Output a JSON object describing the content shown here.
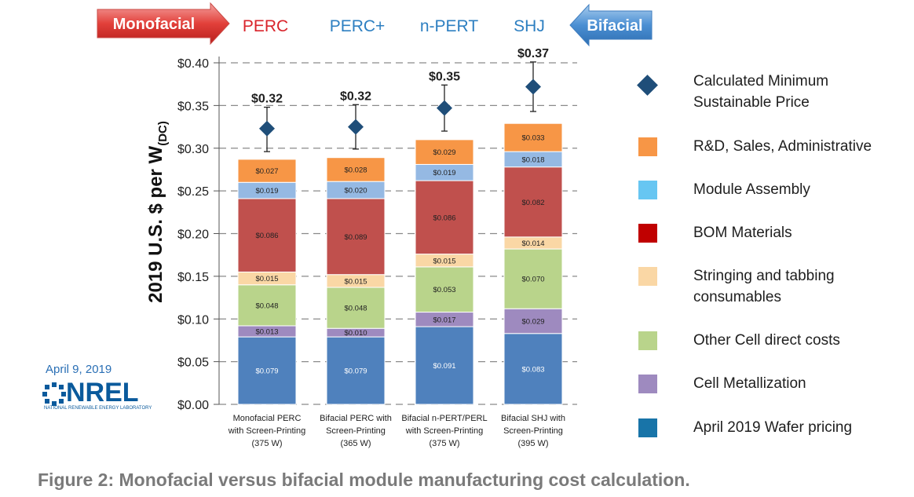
{
  "chart_data": {
    "type": "bar",
    "stacked": true,
    "ylabel": "2019 U.S. $ per W",
    "ylabel_subscript": "(DC)",
    "ylim": [
      0,
      0.4
    ],
    "yticks": [
      "$0.00",
      "$0.05",
      "$0.10",
      "$0.15",
      "$0.20",
      "$0.25",
      "$0.30",
      "$0.35",
      "$0.40"
    ],
    "categories": [
      [
        "Monofacial PERC",
        "with Screen-Printing",
        "(375 W)"
      ],
      [
        "Bifacial PERC with",
        "Screen-Printing",
        "(365 W)"
      ],
      [
        "Bifacial n-PERT/PERL",
        "with Screen-Printing",
        "(375 W)"
      ],
      [
        "Bifacial SHJ with",
        "Screen-Printing",
        "(395 W)"
      ]
    ],
    "series": [
      {
        "name": "April 2019 Wafer pricing",
        "color": "#4f81bd",
        "values": [
          0.079,
          0.079,
          0.091,
          0.083
        ],
        "labels": [
          "$0.079",
          "$0.079",
          "$0.091",
          "$0.083"
        ]
      },
      {
        "name": "Cell Metallization",
        "color": "#9e8abf",
        "values": [
          0.013,
          0.01,
          0.017,
          0.029
        ],
        "labels": [
          "$0.013",
          "$0.010",
          "$0.017",
          "$0.029"
        ]
      },
      {
        "name": "Other Cell direct costs",
        "color": "#b9d48b",
        "values": [
          0.048,
          0.048,
          0.053,
          0.07
        ],
        "labels": [
          "$0.048",
          "$0.048",
          "$0.053",
          "$0.070"
        ]
      },
      {
        "name": "Stringing and tabbing consumables",
        "color": "#fad7a5",
        "values": [
          0.015,
          0.015,
          0.015,
          0.014
        ],
        "labels": [
          "$0.015",
          "$0.015",
          "$0.015",
          "$0.014"
        ]
      },
      {
        "name": "BOM Materials",
        "color": "#c0504d",
        "values": [
          0.086,
          0.089,
          0.086,
          0.082
        ],
        "labels": [
          "$0.086",
          "$0.089",
          "$0.086",
          "$0.082"
        ]
      },
      {
        "name": "Module Assembly",
        "color": "#95b9e3",
        "values": [
          0.019,
          0.02,
          0.019,
          0.018
        ],
        "labels": [
          "$0.019",
          "$0.020",
          "$0.019",
          "$0.018"
        ]
      },
      {
        "name": "R&D, Sales, Administrative",
        "color": "#f79646",
        "values": [
          0.027,
          0.028,
          0.029,
          0.033
        ],
        "labels": [
          "$0.027",
          "$0.028",
          "$0.029",
          "$0.033"
        ]
      }
    ],
    "msp": {
      "name": "Calculated Minimum Sustainable Price",
      "color": "#1f4e79",
      "values": [
        0.32,
        0.32,
        0.35,
        0.37
      ],
      "plotted": [
        0.323,
        0.325,
        0.347,
        0.372
      ],
      "err_low": [
        0.296,
        0.299,
        0.32,
        0.343
      ],
      "err_high": [
        0.348,
        0.351,
        0.374,
        0.401
      ],
      "labels": [
        "$0.32",
        "$0.32",
        "$0.35",
        "$0.37"
      ]
    },
    "legend_order": [
      {
        "name": "Calculated Minimum",
        "name2": "Sustainable Price",
        "kind": "diamond",
        "color": "#1f4e79"
      },
      {
        "name": "R&D, Sales, Administrative",
        "kind": "swatch",
        "color": "#f79646"
      },
      {
        "name": "Module Assembly",
        "kind": "swatch",
        "color": "#67c6f2"
      },
      {
        "name": "BOM Materials",
        "kind": "swatch",
        "color": "#c00000"
      },
      {
        "name": "Stringing and tabbing",
        "name2": "consumables",
        "kind": "swatch",
        "color": "#fad7a5"
      },
      {
        "name": "Other Cell direct costs",
        "kind": "swatch",
        "color": "#b9d48b"
      },
      {
        "name": "Cell Metallization",
        "kind": "swatch",
        "color": "#9e8abf"
      },
      {
        "name": "April 2019 Wafer pricing",
        "kind": "swatch",
        "color": "#1874a8"
      }
    ],
    "header": {
      "monofacial": "Monofacial",
      "bifacial": "Bifacial",
      "technologies": [
        {
          "label": "PERC",
          "color": "#d9242b"
        },
        {
          "label": "PERC+",
          "color": "#2d7fc1"
        },
        {
          "label": "n-PERT",
          "color": "#2d7fc1"
        },
        {
          "label": "SHJ",
          "color": "#2d7fc1"
        }
      ]
    }
  },
  "nrel": {
    "date": "April 9, 2019",
    "logo_text": "NREL",
    "logo_sub": "NATIONAL RENEWABLE ENERGY LABORATORY"
  },
  "caption": "Figure 2: Monofacial versus bifacial module manufacturing cost calculation."
}
